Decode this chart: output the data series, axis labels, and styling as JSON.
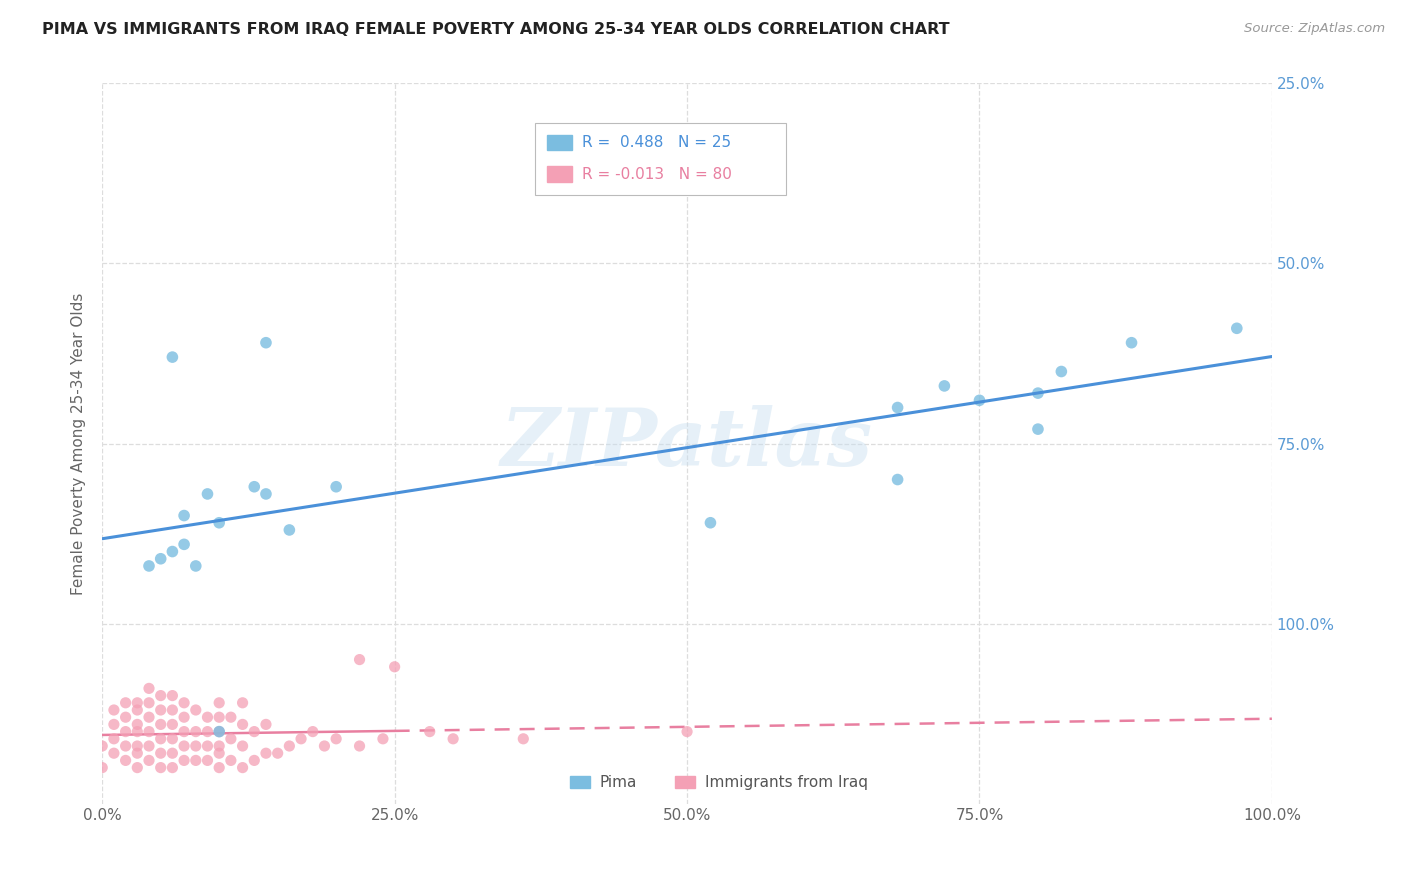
{
  "title": "PIMA VS IMMIGRANTS FROM IRAQ FEMALE POVERTY AMONG 25-34 YEAR OLDS CORRELATION CHART",
  "source": "Source: ZipAtlas.com",
  "ylabel": "Female Poverty Among 25-34 Year Olds",
  "xlim": [
    0.0,
    1.0
  ],
  "ylim": [
    0.0,
    1.0
  ],
  "xtick_labels": [
    "0.0%",
    "25.0%",
    "50.0%",
    "75.0%",
    "100.0%"
  ],
  "xtick_vals": [
    0.0,
    0.25,
    0.5,
    0.75,
    1.0
  ],
  "ytick_right_labels": [
    "100.0%",
    "75.0%",
    "50.0%",
    "25.0%"
  ],
  "ytick_vals": [
    0.25,
    0.5,
    0.75,
    1.0
  ],
  "pima_color": "#7bbde0",
  "iraq_color": "#f4a0b5",
  "pima_line_color": "#4a90d9",
  "iraq_line_color": "#e87fa0",
  "R_pima": 0.488,
  "N_pima": 25,
  "R_iraq": -0.013,
  "N_iraq": 80,
  "watermark": "ZIPatlas",
  "background_color": "#ffffff",
  "grid_color": "#dddddd",
  "right_label_color": "#5b9bd5",
  "pima_x": [
    0.04,
    0.05,
    0.06,
    0.07,
    0.07,
    0.08,
    0.09,
    0.1,
    0.1,
    0.13,
    0.14,
    0.14,
    0.16,
    0.2,
    0.52,
    0.68,
    0.68,
    0.72,
    0.75,
    0.8,
    0.8,
    0.82,
    0.88,
    0.97,
    0.06
  ],
  "pima_y": [
    0.33,
    0.34,
    0.35,
    0.36,
    0.4,
    0.33,
    0.43,
    0.39,
    0.1,
    0.44,
    0.43,
    0.64,
    0.38,
    0.44,
    0.39,
    0.55,
    0.45,
    0.58,
    0.56,
    0.57,
    0.52,
    0.6,
    0.64,
    0.66,
    0.62
  ],
  "iraq_x": [
    0.0,
    0.0,
    0.01,
    0.01,
    0.01,
    0.01,
    0.02,
    0.02,
    0.02,
    0.02,
    0.02,
    0.03,
    0.03,
    0.03,
    0.03,
    0.03,
    0.03,
    0.03,
    0.04,
    0.04,
    0.04,
    0.04,
    0.04,
    0.04,
    0.05,
    0.05,
    0.05,
    0.05,
    0.05,
    0.05,
    0.06,
    0.06,
    0.06,
    0.06,
    0.06,
    0.06,
    0.07,
    0.07,
    0.07,
    0.07,
    0.07,
    0.08,
    0.08,
    0.08,
    0.08,
    0.09,
    0.09,
    0.09,
    0.09,
    0.1,
    0.1,
    0.1,
    0.1,
    0.1,
    0.1,
    0.11,
    0.11,
    0.11,
    0.12,
    0.12,
    0.12,
    0.12,
    0.13,
    0.13,
    0.14,
    0.14,
    0.15,
    0.16,
    0.17,
    0.18,
    0.19,
    0.2,
    0.22,
    0.22,
    0.24,
    0.25,
    0.28,
    0.3,
    0.36,
    0.5
  ],
  "iraq_y": [
    0.05,
    0.08,
    0.07,
    0.09,
    0.11,
    0.13,
    0.06,
    0.08,
    0.1,
    0.12,
    0.14,
    0.05,
    0.07,
    0.08,
    0.1,
    0.11,
    0.13,
    0.14,
    0.06,
    0.08,
    0.1,
    0.12,
    0.14,
    0.16,
    0.05,
    0.07,
    0.09,
    0.11,
    0.13,
    0.15,
    0.05,
    0.07,
    0.09,
    0.11,
    0.13,
    0.15,
    0.06,
    0.08,
    0.1,
    0.12,
    0.14,
    0.06,
    0.08,
    0.1,
    0.13,
    0.06,
    0.08,
    0.1,
    0.12,
    0.05,
    0.07,
    0.08,
    0.1,
    0.12,
    0.14,
    0.06,
    0.09,
    0.12,
    0.05,
    0.08,
    0.11,
    0.14,
    0.06,
    0.1,
    0.07,
    0.11,
    0.07,
    0.08,
    0.09,
    0.1,
    0.08,
    0.09,
    0.08,
    0.2,
    0.09,
    0.19,
    0.1,
    0.09,
    0.09,
    0.1
  ]
}
